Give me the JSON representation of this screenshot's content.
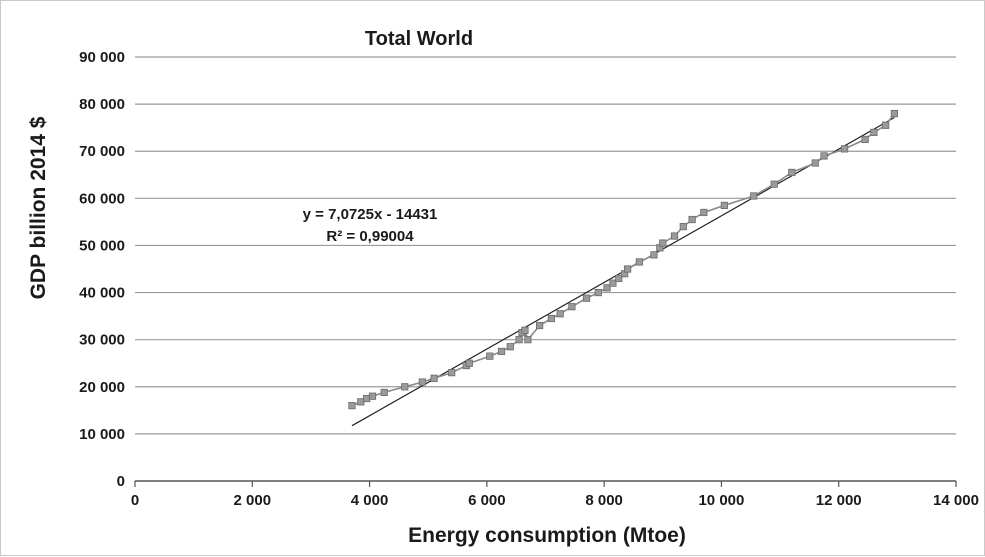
{
  "chart_data": {
    "type": "scatter",
    "title": "Total World",
    "xlabel": "Energy consumption (Mtoe)",
    "ylabel": "GDP billion 2014 $",
    "xlim": [
      0,
      14000
    ],
    "ylim": [
      0,
      90000
    ],
    "xticks": [
      0,
      2000,
      4000,
      6000,
      8000,
      10000,
      12000,
      14000
    ],
    "xtick_labels": [
      "0",
      "2 000",
      "4 000",
      "6 000",
      "8 000",
      "10 000",
      "12 000",
      "14 000"
    ],
    "yticks": [
      0,
      10000,
      20000,
      30000,
      40000,
      50000,
      60000,
      70000,
      80000,
      90000
    ],
    "ytick_labels": [
      "0",
      "10 000",
      "20 000",
      "30 000",
      "40 000",
      "50 000",
      "60 000",
      "70 000",
      "80 000",
      "90 000"
    ],
    "grid": "horizontal",
    "series": [
      {
        "marker": "square",
        "connected": true,
        "color": "#8a8a8a",
        "points": [
          [
            3700,
            16000
          ],
          [
            3850,
            16800
          ],
          [
            3950,
            17500
          ],
          [
            4050,
            18000
          ],
          [
            4250,
            18800
          ],
          [
            4600,
            20000
          ],
          [
            4900,
            21000
          ],
          [
            5100,
            21800
          ],
          [
            5400,
            23000
          ],
          [
            5650,
            24500
          ],
          [
            5700,
            25000
          ],
          [
            6050,
            26500
          ],
          [
            6250,
            27500
          ],
          [
            6400,
            28500
          ],
          [
            6550,
            30000
          ],
          [
            6600,
            31500
          ],
          [
            6650,
            32000
          ],
          [
            6700,
            30000
          ],
          [
            6900,
            33000
          ],
          [
            7100,
            34500
          ],
          [
            7250,
            35500
          ],
          [
            7450,
            37000
          ],
          [
            7700,
            38800
          ],
          [
            7900,
            40000
          ],
          [
            8050,
            41000
          ],
          [
            8150,
            42000
          ],
          [
            8250,
            43000
          ],
          [
            8350,
            44000
          ],
          [
            8400,
            45000
          ],
          [
            8600,
            46500
          ],
          [
            8850,
            48000
          ],
          [
            8950,
            49500
          ],
          [
            9000,
            50500
          ],
          [
            9200,
            52000
          ],
          [
            9350,
            54000
          ],
          [
            9500,
            55500
          ],
          [
            9700,
            57000
          ],
          [
            10050,
            58500
          ],
          [
            10550,
            60500
          ],
          [
            10900,
            63000
          ],
          [
            11200,
            65500
          ],
          [
            11600,
            67500
          ],
          [
            11750,
            69000
          ],
          [
            12100,
            70500
          ],
          [
            12450,
            72500
          ],
          [
            12600,
            74000
          ],
          [
            12800,
            75500
          ],
          [
            12950,
            78000
          ]
        ]
      }
    ],
    "trendline": {
      "type": "linear",
      "slope": 7.0725,
      "intercept": -14431,
      "x_range": [
        3700,
        12950
      ],
      "color": "#222222"
    },
    "annotations": {
      "equation": "y = 7,0725x - 14431",
      "r_squared": "R² = 0,99004"
    }
  }
}
